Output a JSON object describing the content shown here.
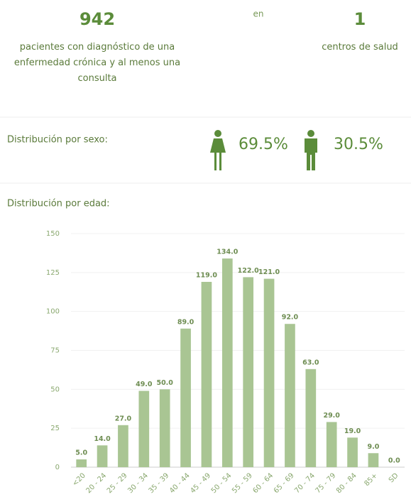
{
  "summary": {
    "patients": "942",
    "patients_text": "pacientes con diagnóstico de una enfermedad crónica y al menos una consulta",
    "connector": "en",
    "centers": "1",
    "centers_text": "centros de salud"
  },
  "sex": {
    "label": "Distribución por sexo:",
    "female": "69.5%",
    "male": "30.5%"
  },
  "age_label": "Distribución por edad:",
  "chart_data": {
    "type": "bar",
    "categories": [
      "<20",
      "20 - 24",
      "25 - 29",
      "30 - 34",
      "35 - 39",
      "40 - 44",
      "45 - 49",
      "50 - 54",
      "55 - 59",
      "60 - 64",
      "65 - 69",
      "70 - 74",
      "75 - 79",
      "80 - 84",
      "85+",
      "SD"
    ],
    "values": [
      5,
      14,
      27,
      49,
      50,
      89,
      119,
      134,
      122,
      121,
      92,
      63,
      29,
      19,
      9,
      0
    ],
    "value_labels": [
      "5.0",
      "14.0",
      "27.0",
      "49.0",
      "50.0",
      "89.0",
      "119.0",
      "134.0",
      "122.0",
      "121.0",
      "92.0",
      "63.0",
      "29.0",
      "19.0",
      "9.0",
      "0.0"
    ],
    "color": "#a9c593",
    "ylim": [
      0,
      150
    ],
    "yticks": [
      0,
      25,
      50,
      75,
      100,
      125,
      150
    ],
    "grid": true
  }
}
